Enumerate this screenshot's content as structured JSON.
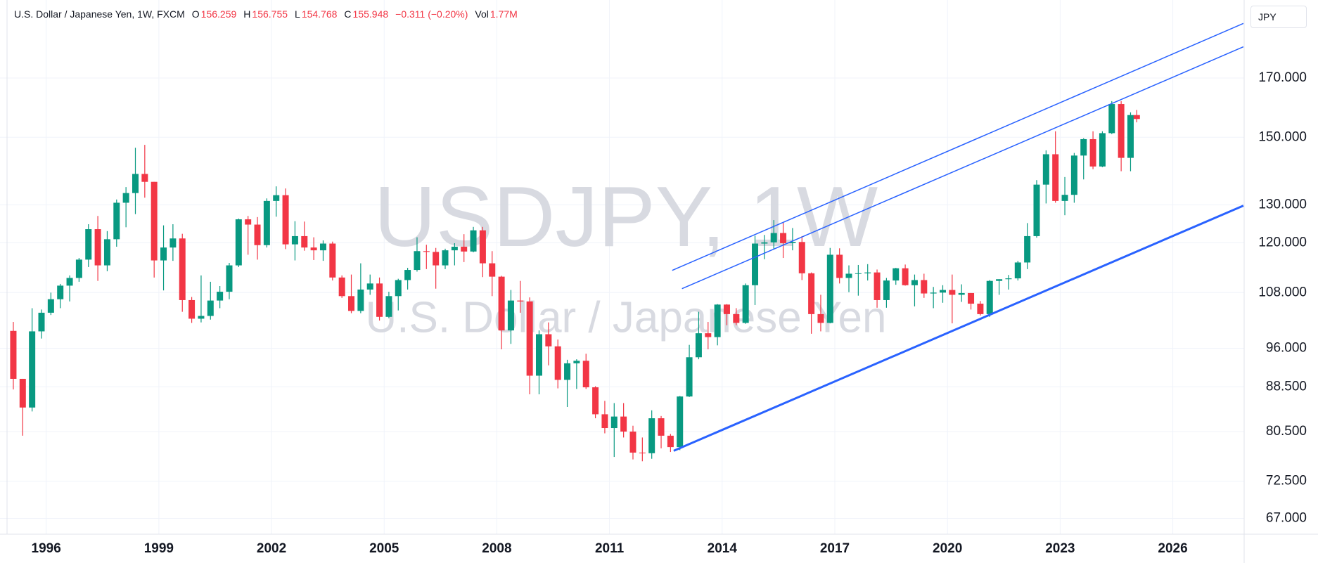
{
  "chart_data": {
    "type": "candlestick",
    "watermark_title": "USDJPY, 1W",
    "watermark_subtitle": "U.S. Dollar / Japanese Yen",
    "currency": "JPY",
    "legend": {
      "symbol": "U.S. Dollar / Japanese Yen, 1W, FXCM",
      "fields": [
        {
          "label": "O",
          "value": 156.259
        },
        {
          "label": "H",
          "value": 156.755
        },
        {
          "label": "L",
          "value": 154.768
        },
        {
          "label": "C",
          "value": 155.948
        }
      ],
      "change": "−0.311 (−0.20%)",
      "volume_label": "Vol",
      "volume": "1.77M"
    },
    "log_scale": true,
    "grid": true,
    "up_color": "#089981",
    "down_color": "#f23645",
    "xlim": [
      1994.77,
      2027.9
    ],
    "ylim": [
      64.8,
      200.5
    ],
    "xticks": [
      1996,
      1999,
      2002,
      2005,
      2008,
      2011,
      2014,
      2017,
      2020,
      2023,
      2026
    ],
    "yticks": [
      {
        "value": 67,
        "label": "67.000"
      },
      {
        "value": 72.5,
        "label": "72.500"
      },
      {
        "value": 80.5,
        "label": "80.500"
      },
      {
        "value": 88.5,
        "label": "88.500"
      },
      {
        "value": 96,
        "label": "96.000"
      },
      {
        "value": 108,
        "label": "108.000"
      },
      {
        "value": 120,
        "label": "120.000"
      },
      {
        "value": 130,
        "label": "130.000"
      },
      {
        "value": 150,
        "label": "150.000"
      },
      {
        "value": 170,
        "label": "170.000"
      }
    ],
    "trend_lines": [
      {
        "x": [
          2012.67,
          2027.88
        ],
        "y": [
          113.2,
          190.8
        ],
        "color": "#2962ff",
        "width": 1.5
      },
      {
        "x": [
          2012.93,
          2027.88
        ],
        "y": [
          108.9,
          181.6
        ],
        "color": "#2962ff",
        "width": 1.5
      },
      {
        "x": [
          2012.71,
          2027.88
        ],
        "y": [
          77.3,
          129.8
        ],
        "color": "#2962ff",
        "width": 3
      }
    ],
    "x": [
      1995.125,
      1995.375,
      1995.625,
      1995.875,
      1996.125,
      1996.375,
      1996.625,
      1996.875,
      1997.125,
      1997.375,
      1997.625,
      1997.875,
      1998.125,
      1998.375,
      1998.625,
      1998.875,
      1999.125,
      1999.375,
      1999.625,
      1999.875,
      2000.125,
      2000.375,
      2000.625,
      2000.875,
      2001.125,
      2001.375,
      2001.625,
      2001.875,
      2002.125,
      2002.375,
      2002.625,
      2002.875,
      2003.125,
      2003.375,
      2003.625,
      2003.875,
      2004.125,
      2004.375,
      2004.625,
      2004.875,
      2005.125,
      2005.375,
      2005.625,
      2005.875,
      2006.125,
      2006.375,
      2006.625,
      2006.875,
      2007.125,
      2007.375,
      2007.625,
      2007.875,
      2008.125,
      2008.375,
      2008.625,
      2008.875,
      2009.125,
      2009.375,
      2009.625,
      2009.875,
      2010.125,
      2010.375,
      2010.625,
      2010.875,
      2011.125,
      2011.375,
      2011.625,
      2011.875,
      2012.125,
      2012.375,
      2012.625,
      2012.875,
      2013.125,
      2013.375,
      2013.625,
      2013.875,
      2014.125,
      2014.375,
      2014.625,
      2014.875,
      2015.125,
      2015.375,
      2015.625,
      2015.875,
      2016.125,
      2016.375,
      2016.625,
      2016.875,
      2017.125,
      2017.375,
      2017.625,
      2017.875,
      2018.125,
      2018.375,
      2018.625,
      2018.875,
      2019.125,
      2019.375,
      2019.625,
      2019.875,
      2020.125,
      2020.375,
      2020.625,
      2020.875,
      2021.125,
      2021.375,
      2021.625,
      2021.875,
      2022.125,
      2022.375,
      2022.625,
      2022.875,
      2023.125,
      2023.375,
      2023.625,
      2023.875,
      2024.125,
      2024.375,
      2024.625,
      2024.875,
      2025.04
    ],
    "open": [
      99.6,
      90,
      84.7,
      99.5,
      103.5,
      106.5,
      109.6,
      111.4,
      115.8,
      123.5,
      114.4,
      120.9,
      130.6,
      133.3,
      138.8,
      136.5,
      115.6,
      118.8,
      121.1,
      106.3,
      102.2,
      102.8,
      106.2,
      108.2,
      114.4,
      126.1,
      124.7,
      119.4,
      131.1,
      132.7,
      119.6,
      121.7,
      118.8,
      118.1,
      119.8,
      111.5,
      107.2,
      103.9,
      108.7,
      110.1,
      102.6,
      107.2,
      110.9,
      113.3,
      117.9,
      117.7,
      114.4,
      118.1,
      119,
      117.8,
      123.2,
      114.9,
      111.7,
      99.7,
      106.2,
      106,
      90.6,
      98.9,
      96.4,
      89.8,
      93,
      93.5,
      88.4,
      83.5,
      81.1,
      83.1,
      80.5,
      77,
      76.9,
      82.8,
      79.8,
      77.9,
      86.7,
      94.2,
      99.1,
      98.3,
      105.3,
      103.2,
      101.3,
      109.7,
      119.8,
      120.1,
      122.5,
      119.9,
      120.2,
      112.5,
      103.2,
      101.3,
      117,
      111.4,
      112.4,
      112.5,
      112.7,
      106.3,
      110.8,
      113.7,
      109.7,
      110.9,
      107.8,
      108,
      108.6,
      107.5,
      107.9,
      105.5,
      103.2,
      110.7,
      111.1,
      111.3,
      115.1,
      121.7,
      135.7,
      144.7,
      131.1,
      132.8,
      144.3,
      149.4,
      141,
      151.3,
      160.9,
      143.6,
      157.2
    ],
    "high": [
      101.5,
      90,
      104.5,
      104.2,
      108,
      110,
      112,
      116.2,
      124.8,
      127,
      123,
      131.5,
      135,
      146.7,
      147.6,
      136.5,
      124.5,
      124.8,
      122.3,
      107,
      112,
      110.5,
      109.5,
      115,
      126.3,
      127,
      126.7,
      131.8,
      135.2,
      134.6,
      125.6,
      125.5,
      121.4,
      120.6,
      120.3,
      112,
      112.2,
      114.9,
      112.2,
      111.5,
      108.2,
      111.2,
      113.8,
      121.4,
      119.5,
      118.7,
      118.5,
      119.9,
      122.2,
      124.1,
      124.1,
      117.9,
      111.9,
      108.6,
      110.7,
      106.9,
      99.7,
      101.4,
      97.8,
      93.7,
      93.8,
      94.9,
      88.6,
      85.9,
      85.5,
      85.5,
      81.5,
      79.5,
      84.2,
      83.2,
      80.1,
      86.8,
      96.7,
      103.7,
      101.5,
      105.4,
      105.4,
      104.5,
      110.1,
      121.8,
      122,
      125.9,
      125.3,
      123.8,
      121.7,
      112.7,
      107.5,
      118.7,
      118.6,
      114.4,
      114.5,
      114.7,
      113.4,
      111.4,
      113.8,
      114.6,
      112.2,
      112.4,
      109.3,
      109.7,
      112.2,
      109.9,
      107.9,
      106.1,
      110.9,
      111.1,
      112.1,
      115.5,
      125.1,
      137,
      145.9,
      151.9,
      137.9,
      145.1,
      149.7,
      151.9,
      151.9,
      161.9,
      161.9,
      158.1,
      158.9
    ],
    "low": [
      88,
      79.8,
      84,
      98,
      103,
      104.5,
      106,
      110.5,
      114,
      110.7,
      113,
      119,
      124,
      127.5,
      132,
      111.5,
      108.5,
      115.5,
      103.7,
      101.3,
      101.4,
      102,
      104.5,
      106.5,
      114,
      117,
      115.8,
      118.8,
      126.8,
      118.4,
      115.6,
      118,
      115.7,
      115.5,
      110.8,
      106.8,
      103.4,
      103.4,
      107.5,
      101.8,
      102.3,
      104,
      108.7,
      112.9,
      113.5,
      108.9,
      113.5,
      114.4,
      115.2,
      117.6,
      111.6,
      107.2,
      95.8,
      96.9,
      103.5,
      87.1,
      87.1,
      92.6,
      88.2,
      84.8,
      88.1,
      88.1,
      82.8,
      80.2,
      76.3,
      79.5,
      75.9,
      75.6,
      76,
      77.7,
      77.1,
      77.4,
      86.6,
      93.8,
      95.8,
      96.6,
      100.8,
      100.8,
      101.1,
      105.2,
      115.9,
      118.4,
      116.2,
      118.1,
      110.9,
      99,
      99.5,
      101.2,
      110.1,
      108.1,
      107.3,
      110.8,
      104.6,
      104.6,
      109.8,
      109.6,
      104.9,
      106.8,
      104.5,
      105.7,
      101.2,
      105.9,
      104.2,
      102.9,
      102.6,
      107.5,
      108.7,
      110.8,
      113.5,
      121.3,
      130.4,
      130.6,
      127.2,
      130.6,
      137.2,
      140.2,
      140.8,
      151,
      139.6,
      139.6,
      154.8
    ],
    "close": [
      90,
      84.7,
      99.5,
      103.5,
      106.5,
      109.6,
      111.4,
      115.8,
      123.5,
      114.4,
      120.9,
      130.6,
      133.3,
      138.8,
      136.5,
      115.6,
      118.8,
      121.1,
      106.3,
      102.2,
      102.8,
      106.2,
      108.2,
      114.4,
      126.1,
      124.7,
      119.4,
      131.1,
      132.7,
      119.6,
      121.7,
      118.8,
      118.1,
      119.8,
      111.5,
      107.2,
      103.9,
      108.7,
      110.1,
      102.6,
      107.2,
      110.9,
      113.3,
      117.9,
      117.7,
      114.4,
      118.1,
      119,
      117.8,
      123.2,
      114.9,
      111.7,
      99.7,
      106.2,
      106,
      90.6,
      98.9,
      96.4,
      89.8,
      93,
      93.5,
      88.4,
      83.5,
      81.1,
      83.1,
      80.5,
      77,
      76.9,
      82.8,
      79.8,
      77.9,
      86.7,
      94.2,
      99.1,
      98.3,
      105.3,
      103.2,
      101.3,
      109.7,
      119.8,
      120.1,
      122.5,
      119.9,
      120.2,
      112.5,
      103.2,
      101.3,
      117,
      111.4,
      112.4,
      112.5,
      112.7,
      106.3,
      110.8,
      113.7,
      109.7,
      110.9,
      107.8,
      108,
      108.6,
      107.5,
      107.9,
      105.5,
      103.2,
      110.7,
      111.1,
      111.3,
      115.1,
      121.7,
      135.7,
      144.7,
      131.1,
      132.8,
      144.3,
      149.4,
      141,
      151.3,
      160.9,
      143.6,
      157.2,
      155.9
    ]
  }
}
